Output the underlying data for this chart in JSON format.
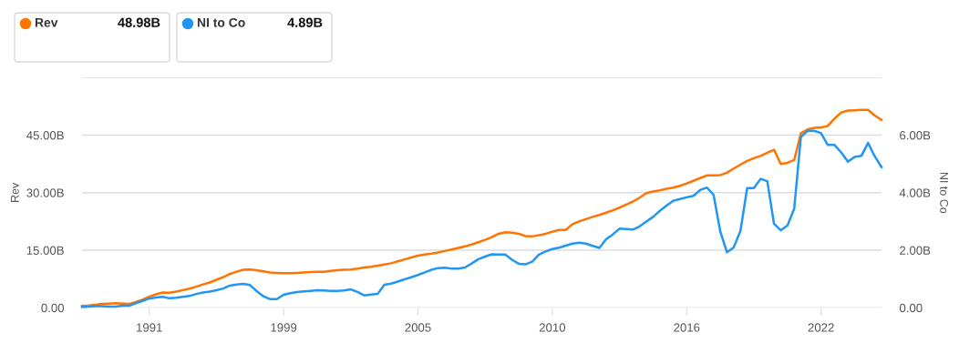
{
  "chart_data": {
    "type": "line",
    "ylabel": "Rev",
    "y2label": "NI to Co",
    "categories": [
      null,
      null,
      null,
      null,
      null,
      null,
      null,
      null,
      null,
      null,
      "1991",
      null,
      null,
      null,
      null,
      null,
      null,
      null,
      null,
      null,
      null,
      null,
      null,
      null,
      null,
      null,
      null,
      null,
      null,
      null,
      "1999",
      null,
      null,
      null,
      null,
      null,
      null,
      null,
      null,
      null,
      null,
      null,
      null,
      null,
      null,
      null,
      null,
      null,
      null,
      null,
      "2005",
      null,
      null,
      null,
      null,
      null,
      null,
      null,
      null,
      null,
      null,
      null,
      null,
      null,
      null,
      null,
      null,
      null,
      null,
      null,
      "2010",
      null,
      null,
      null,
      null,
      null,
      null,
      null,
      null,
      null,
      null,
      null,
      null,
      null,
      null,
      null,
      null,
      null,
      null,
      null,
      "2016",
      null,
      null,
      null,
      null,
      null,
      null,
      null,
      null,
      null,
      null,
      null,
      null,
      null,
      null,
      null,
      null,
      null,
      null,
      null,
      "2022",
      null,
      null,
      null,
      null,
      null,
      null,
      null,
      null,
      null
    ],
    "ylim": [
      0,
      60
    ],
    "yticks": [
      {
        "value": 0,
        "label": "0.00"
      },
      {
        "value": 15,
        "label": "15.00B"
      },
      {
        "value": 30,
        "label": "30.00B"
      },
      {
        "value": 45,
        "label": "45.00B"
      },
      {
        "value": 60,
        "label": null
      }
    ],
    "y2lim": [
      0,
      8
    ],
    "y2ticks": [
      {
        "value": 0,
        "label": "0.00"
      },
      {
        "value": 2,
        "label": "2.00B"
      },
      {
        "value": 4,
        "label": "4.00B"
      },
      {
        "value": 6,
        "label": "6.00B"
      }
    ],
    "grid": "y",
    "legend": "top left",
    "marker": "none",
    "line_style": "solid",
    "annotations": [
      "48.98B",
      "4.89B"
    ],
    "series": [
      {
        "name": "Rev",
        "color": "#ff7400",
        "values": [
          0.5,
          0.6,
          0.8,
          1.0,
          1.1,
          1.2,
          1.1,
          1.0,
          1.5,
          2.1,
          2.9,
          3.5,
          4.0,
          3.9,
          4.2,
          4.6,
          5.0,
          5.5,
          6.1,
          6.6,
          7.3,
          8.0,
          8.8,
          9.4,
          9.9,
          10.0,
          9.8,
          9.5,
          9.2,
          9.1,
          9.0,
          9.0,
          9.1,
          9.2,
          9.3,
          9.4,
          9.4,
          9.6,
          9.8,
          9.9,
          10.0,
          10.2,
          10.5,
          10.7,
          11.0,
          11.3,
          11.6,
          12.1,
          12.6,
          13.1,
          13.6,
          13.9,
          14.1,
          14.4,
          14.8,
          15.2,
          15.6,
          16.0,
          16.5,
          17.1,
          17.7,
          18.4,
          19.3,
          19.7,
          19.6,
          19.3,
          18.7,
          18.6,
          18.9,
          19.3,
          19.8,
          20.3,
          20.3,
          21.8,
          22.5,
          23.1,
          23.7,
          24.2,
          24.8,
          25.4,
          26.1,
          26.9,
          27.7,
          28.7,
          29.9,
          30.3,
          30.6,
          31.0,
          31.3,
          31.8,
          32.4,
          33.1,
          33.8,
          34.5,
          34.5,
          34.6,
          35.2,
          36.3,
          37.3,
          38.3,
          39.0,
          39.6,
          40.4,
          41.2,
          37.5,
          37.8,
          38.5,
          45.5,
          46.5,
          46.9,
          47.0,
          47.4,
          49.3,
          50.9,
          51.4,
          51.5,
          51.6,
          51.6,
          50.1,
          49.0
        ]
      },
      {
        "name": "NI to Co",
        "color": "#2196f3",
        "axis": "y2",
        "values": [
          0.03,
          0.04,
          0.06,
          0.06,
          0.04,
          0.04,
          0.07,
          0.07,
          0.16,
          0.24,
          0.32,
          0.36,
          0.38,
          0.33,
          0.35,
          0.38,
          0.41,
          0.48,
          0.53,
          0.56,
          0.61,
          0.67,
          0.77,
          0.81,
          0.83,
          0.79,
          0.58,
          0.4,
          0.3,
          0.3,
          0.45,
          0.51,
          0.55,
          0.57,
          0.59,
          0.61,
          0.6,
          0.59,
          0.59,
          0.6,
          0.64,
          0.55,
          0.43,
          0.46,
          0.48,
          0.8,
          0.84,
          0.91,
          0.99,
          1.06,
          1.14,
          1.23,
          1.32,
          1.38,
          1.39,
          1.36,
          1.36,
          1.4,
          1.54,
          1.69,
          1.78,
          1.86,
          1.85,
          1.85,
          1.67,
          1.53,
          1.51,
          1.6,
          1.85,
          1.96,
          2.04,
          2.09,
          2.16,
          2.23,
          2.26,
          2.23,
          2.15,
          2.08,
          2.38,
          2.55,
          2.75,
          2.74,
          2.72,
          2.83,
          3.0,
          3.16,
          3.37,
          3.55,
          3.72,
          3.78,
          3.84,
          3.89,
          4.09,
          4.18,
          3.93,
          2.65,
          1.93,
          2.1,
          2.67,
          4.16,
          4.16,
          4.48,
          4.4,
          2.92,
          2.69,
          2.86,
          3.44,
          5.94,
          6.15,
          6.15,
          6.07,
          5.66,
          5.66,
          5.4,
          5.08,
          5.24,
          5.28,
          5.73,
          5.26,
          4.89
        ]
      }
    ]
  }
}
